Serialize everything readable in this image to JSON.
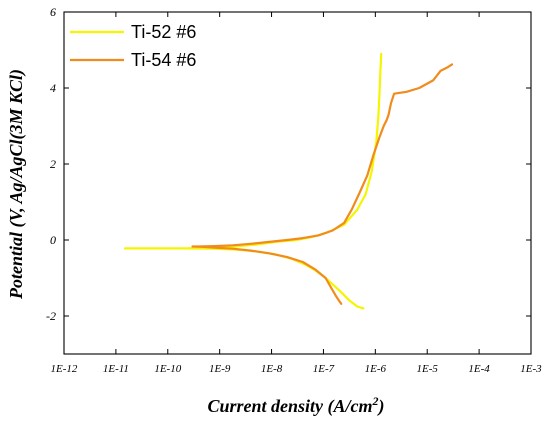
{
  "chart_data": {
    "type": "line",
    "title": "",
    "xlabel": "Current density (A/cm",
    "xlabel_sup": "2",
    "xlabel_close": ")",
    "ylabel": "Potential (V, Ag/AgCl(3M KCl)",
    "xscale": "log",
    "xlim": [
      1e-12,
      0.001
    ],
    "ylim": [
      -3,
      6
    ],
    "x_ticks": [
      {
        "value": 1e-12,
        "label": "1E-12"
      },
      {
        "value": 1e-11,
        "label": "1E-11"
      },
      {
        "value": 1e-10,
        "label": "1E-10"
      },
      {
        "value": 1e-09,
        "label": "1E-9"
      },
      {
        "value": 1e-08,
        "label": "1E-8"
      },
      {
        "value": 1e-07,
        "label": "1E-7"
      },
      {
        "value": 1e-06,
        "label": "1E-6"
      },
      {
        "value": 1e-05,
        "label": "1E-5"
      },
      {
        "value": 0.0001,
        "label": "1E-4"
      },
      {
        "value": 0.001,
        "label": "1E-3"
      }
    ],
    "y_ticks": [
      {
        "value": -2,
        "label": "-2"
      },
      {
        "value": 0,
        "label": "0"
      },
      {
        "value": 2,
        "label": "2"
      },
      {
        "value": 4,
        "label": "4"
      },
      {
        "value": 6,
        "label": "6"
      }
    ],
    "grid": false,
    "legend_position": "top-left",
    "series": [
      {
        "name": "Ti-52 #6",
        "color": "#F5F500",
        "x": [
          5.9e-07,
          4.5e-07,
          3.2e-07,
          2.3e-07,
          1.6e-07,
          1.1e-07,
          7e-08,
          4.5e-08,
          2.5e-08,
          1.2e-08,
          5e-09,
          2e-09,
          7e-10,
          2.2e-10,
          7e-11,
          2e-11,
          1.5e-11,
          2e-11,
          7e-11,
          2.2e-10,
          7e-10,
          2e-09,
          5e-09,
          1.2e-08,
          3e-08,
          6e-08,
          1.2e-07,
          2.5e-07,
          4.5e-07,
          6.5e-07,
          8.5e-07,
          1.05e-06,
          1.15e-06,
          1.2e-06,
          1.23e-06,
          1.26e-06,
          1.28e-06,
          1.3e-06
        ],
        "y": [
          -1.8,
          -1.75,
          -1.6,
          -1.4,
          -1.2,
          -1.0,
          -0.8,
          -0.65,
          -0.5,
          -0.38,
          -0.3,
          -0.25,
          -0.23,
          -0.22,
          -0.22,
          -0.22,
          -0.22,
          -0.22,
          -0.22,
          -0.22,
          -0.2,
          -0.17,
          -0.12,
          -0.05,
          0.0,
          0.08,
          0.2,
          0.4,
          0.8,
          1.2,
          1.8,
          2.6,
          3.3,
          3.8,
          4.2,
          4.5,
          4.7,
          4.9
        ]
      },
      {
        "name": "Ti-54 #6",
        "color": "#F08C1E",
        "x": [
          2.2e-07,
          2e-07,
          1.7e-07,
          1.4e-07,
          1.1e-07,
          7e-08,
          4e-08,
          2e-08,
          9e-09,
          4e-09,
          1.8e-09,
          8e-10,
          4.5e-10,
          3e-10,
          4e-10,
          8e-10,
          1.8e-09,
          4e-09,
          9e-09,
          2e-08,
          4e-08,
          8e-08,
          1.5e-07,
          2.5e-07,
          3.5e-07,
          5e-07,
          7e-07,
          9e-07,
          1.2e-06,
          1.45e-06,
          1.65e-06,
          1.8e-06,
          2e-06,
          2.3e-06,
          4e-06,
          7e-06,
          1.3e-05,
          1.8e-05,
          2.5e-05,
          3e-05
        ],
        "y": [
          -1.68,
          -1.6,
          -1.45,
          -1.25,
          -1.0,
          -0.78,
          -0.58,
          -0.45,
          -0.35,
          -0.28,
          -0.23,
          -0.2,
          -0.18,
          -0.17,
          -0.17,
          -0.16,
          -0.14,
          -0.1,
          -0.05,
          0.0,
          0.05,
          0.12,
          0.25,
          0.45,
          0.8,
          1.25,
          1.7,
          2.2,
          2.7,
          3.0,
          3.15,
          3.3,
          3.6,
          3.85,
          3.9,
          4.0,
          4.2,
          4.45,
          4.55,
          4.62
        ]
      }
    ]
  }
}
